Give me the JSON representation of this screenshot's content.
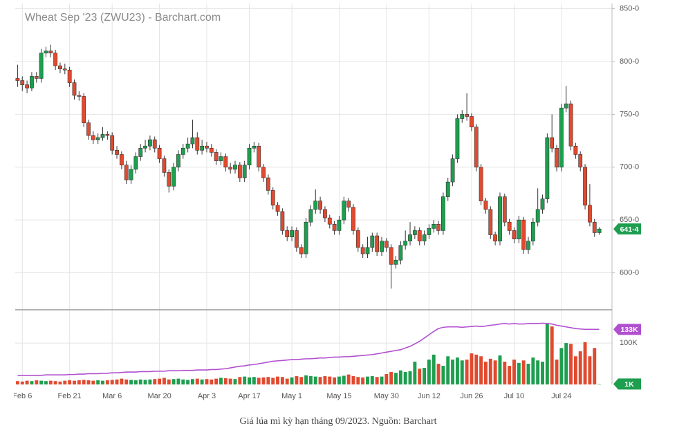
{
  "chart_data": [
    {
      "type": "candlestick",
      "title": "Wheat Sep '23 (ZWU23) - Barchart.com",
      "categories": [
        null,
        "Feb 6",
        null,
        null,
        null,
        null,
        null,
        null,
        null,
        null,
        null,
        "Feb 21",
        null,
        null,
        null,
        null,
        null,
        null,
        null,
        null,
        "Mar 6",
        null,
        null,
        null,
        null,
        null,
        null,
        null,
        null,
        null,
        "Mar 20",
        null,
        null,
        null,
        null,
        null,
        null,
        null,
        null,
        null,
        "Apr 3",
        null,
        null,
        null,
        null,
        null,
        null,
        null,
        null,
        "Apr 17",
        null,
        null,
        null,
        null,
        null,
        null,
        null,
        null,
        "May 1",
        null,
        null,
        null,
        null,
        null,
        null,
        null,
        null,
        null,
        "May 15",
        null,
        null,
        null,
        null,
        null,
        null,
        null,
        null,
        null,
        "May 30",
        null,
        null,
        null,
        null,
        null,
        null,
        null,
        null,
        "Jun 12",
        null,
        null,
        null,
        null,
        null,
        null,
        null,
        null,
        "Jun 26",
        null,
        null,
        null,
        null,
        null,
        null,
        null,
        null,
        "Jul 10",
        null,
        null,
        null,
        null,
        null,
        null,
        null,
        null,
        null,
        "Jul 24",
        null,
        null,
        null,
        null,
        null,
        null,
        null,
        null
      ],
      "open": [
        784,
        782,
        778,
        775,
        786,
        784,
        808,
        810,
        808,
        796,
        793,
        792,
        780,
        768,
        767,
        742,
        730,
        726,
        728,
        731,
        730,
        716,
        712,
        702,
        688,
        698,
        710,
        718,
        720,
        726,
        718,
        708,
        695,
        682,
        700,
        712,
        718,
        722,
        728,
        716,
        720,
        718,
        714,
        706,
        710,
        700,
        698,
        702,
        690,
        702,
        718,
        720,
        700,
        690,
        678,
        664,
        658,
        640,
        634,
        640,
        624,
        618,
        648,
        660,
        668,
        660,
        652,
        646,
        640,
        650,
        668,
        662,
        640,
        624,
        618,
        624,
        635,
        620,
        630,
        624,
        608,
        612,
        626,
        630,
        636,
        640,
        630,
        636,
        642,
        646,
        640,
        672,
        686,
        708,
        746,
        750,
        748,
        738,
        700,
        668,
        660,
        636,
        630,
        672,
        648,
        640,
        632,
        650,
        622,
        630,
        648,
        660,
        670,
        728,
        718,
        700,
        756,
        760,
        720,
        712,
        700,
        664,
        648,
        638
      ],
      "high": [
        797,
        786,
        782,
        790,
        790,
        812,
        814,
        816,
        811,
        799,
        798,
        795,
        783,
        772,
        770,
        745,
        734,
        732,
        738,
        734,
        733,
        720,
        715,
        706,
        702,
        714,
        722,
        726,
        730,
        729,
        721,
        711,
        698,
        704,
        716,
        722,
        728,
        745,
        733,
        726,
        724,
        722,
        717,
        714,
        713,
        704,
        706,
        705,
        706,
        722,
        724,
        723,
        703,
        693,
        681,
        667,
        661,
        644,
        644,
        643,
        627,
        652,
        664,
        679,
        672,
        663,
        655,
        649,
        654,
        672,
        671,
        665,
        643,
        627,
        634,
        638,
        638,
        634,
        633,
        627,
        616,
        630,
        640,
        648,
        644,
        643,
        640,
        646,
        650,
        649,
        676,
        690,
        712,
        750,
        754,
        770,
        751,
        741,
        703,
        671,
        663,
        639,
        676,
        675,
        651,
        643,
        654,
        653,
        634,
        652,
        680,
        674,
        732,
        750,
        721,
        760,
        777,
        763,
        723,
        715,
        703,
        684,
        651,
        643
      ],
      "low": [
        776,
        772,
        770,
        772,
        780,
        780,
        804,
        804,
        792,
        789,
        788,
        776,
        764,
        763,
        738,
        726,
        722,
        722,
        725,
        726,
        712,
        708,
        698,
        684,
        684,
        694,
        706,
        714,
        716,
        714,
        704,
        691,
        676,
        678,
        696,
        708,
        714,
        718,
        712,
        712,
        714,
        710,
        702,
        702,
        696,
        694,
        694,
        686,
        686,
        698,
        714,
        696,
        686,
        674,
        660,
        654,
        636,
        630,
        630,
        620,
        614,
        614,
        644,
        656,
        656,
        648,
        642,
        636,
        636,
        646,
        658,
        636,
        620,
        614,
        614,
        620,
        616,
        616,
        620,
        585,
        604,
        608,
        622,
        626,
        632,
        626,
        626,
        632,
        638,
        636,
        636,
        668,
        682,
        704,
        742,
        744,
        734,
        696,
        664,
        656,
        632,
        626,
        626,
        644,
        636,
        628,
        628,
        618,
        618,
        626,
        644,
        656,
        666,
        714,
        696,
        696,
        752,
        716,
        708,
        696,
        660,
        644,
        634,
        636
      ],
      "close": [
        782,
        778,
        775,
        786,
        784,
        808,
        810,
        808,
        796,
        793,
        792,
        780,
        768,
        767,
        742,
        730,
        726,
        728,
        731,
        730,
        716,
        712,
        702,
        688,
        698,
        710,
        718,
        720,
        726,
        718,
        708,
        695,
        682,
        700,
        712,
        718,
        722,
        728,
        716,
        720,
        718,
        714,
        706,
        710,
        700,
        698,
        702,
        690,
        702,
        718,
        720,
        700,
        690,
        678,
        664,
        658,
        640,
        634,
        640,
        624,
        618,
        648,
        660,
        668,
        660,
        652,
        646,
        640,
        650,
        668,
        662,
        640,
        624,
        618,
        624,
        635,
        620,
        630,
        624,
        608,
        612,
        626,
        630,
        636,
        640,
        630,
        636,
        642,
        646,
        640,
        672,
        686,
        708,
        746,
        750,
        748,
        738,
        700,
        668,
        660,
        636,
        630,
        672,
        648,
        640,
        632,
        650,
        622,
        630,
        648,
        660,
        670,
        728,
        718,
        700,
        756,
        760,
        720,
        712,
        700,
        664,
        648,
        638,
        641.5
      ],
      "colors": {
        "up": "#1e9e4f",
        "down": "#e04a2f"
      },
      "ylim": [
        565,
        855
      ],
      "yticks": [
        {
          "value": 600,
          "label": "600-0"
        },
        {
          "value": 650,
          "label": "650-0"
        },
        {
          "value": 700,
          "label": "700-0"
        },
        {
          "value": 750,
          "label": "750-0"
        },
        {
          "value": 800,
          "label": "800-0"
        },
        {
          "value": 850,
          "label": "850-0"
        }
      ],
      "last": {
        "value": 641.5,
        "label": "641-4"
      },
      "grid": true
    },
    {
      "type": "bar",
      "values": [
        8,
        7,
        9,
        8,
        10,
        9,
        8,
        9,
        8,
        7,
        9,
        10,
        9,
        10,
        11,
        10,
        9,
        10,
        9,
        10,
        11,
        12,
        14,
        12,
        11,
        10,
        12,
        11,
        12,
        13,
        14,
        16,
        12,
        13,
        14,
        12,
        11,
        13,
        14,
        12,
        13,
        12,
        14,
        16,
        15,
        14,
        13,
        18,
        19,
        17,
        18,
        16,
        17,
        18,
        16,
        19,
        18,
        14,
        17,
        20,
        18,
        22,
        20,
        19,
        18,
        20,
        19,
        17,
        19,
        21,
        24,
        20,
        18,
        17,
        19,
        20,
        18,
        19,
        25,
        30,
        28,
        34,
        30,
        32,
        55,
        38,
        40,
        60,
        72,
        50,
        45,
        68,
        60,
        65,
        58,
        60,
        75,
        72,
        68,
        55,
        62,
        58,
        70,
        55,
        45,
        60,
        52,
        58,
        50,
        65,
        58,
        55,
        147,
        140,
        60,
        88,
        100,
        98,
        68,
        80,
        102,
        68,
        88,
        1
      ],
      "line": [
        22,
        22,
        22,
        22,
        22,
        22,
        23,
        23,
        23,
        23,
        23,
        24,
        24,
        25,
        25,
        26,
        26,
        26,
        27,
        27,
        28,
        28,
        29,
        30,
        30,
        30,
        31,
        31,
        31,
        32,
        32,
        32,
        33,
        33,
        33,
        34,
        34,
        34,
        35,
        35,
        35,
        36,
        36,
        37,
        38,
        40,
        42,
        44,
        45,
        47,
        48,
        50,
        52,
        54,
        56,
        57,
        58,
        59,
        60,
        60,
        61,
        62,
        62,
        63,
        64,
        64,
        65,
        66,
        66,
        67,
        67,
        68,
        69,
        70,
        71,
        72,
        74,
        76,
        78,
        80,
        82,
        84,
        88,
        92,
        98,
        104,
        112,
        120,
        128,
        135,
        138,
        139,
        139,
        139,
        138,
        139,
        140,
        141,
        140,
        141,
        143,
        144,
        146,
        147,
        146,
        147,
        146,
        146,
        147,
        147,
        147,
        148,
        147,
        146,
        143,
        141,
        139,
        137,
        135,
        134,
        133,
        133,
        133,
        133
      ],
      "line_color": "#b14fd0",
      "ylim": [
        0,
        177
      ],
      "yticks": [
        {
          "value": 100,
          "label": "100K"
        }
      ],
      "badges": [
        {
          "value": 133,
          "label": "133K",
          "color": "#b14fd0"
        },
        {
          "value": 1,
          "label": "1K",
          "color": "#1e9e4f"
        }
      ]
    }
  ],
  "caption": "Giá lúa mì kỳ hạn tháng 09/2023. Nguồn: Barchart"
}
